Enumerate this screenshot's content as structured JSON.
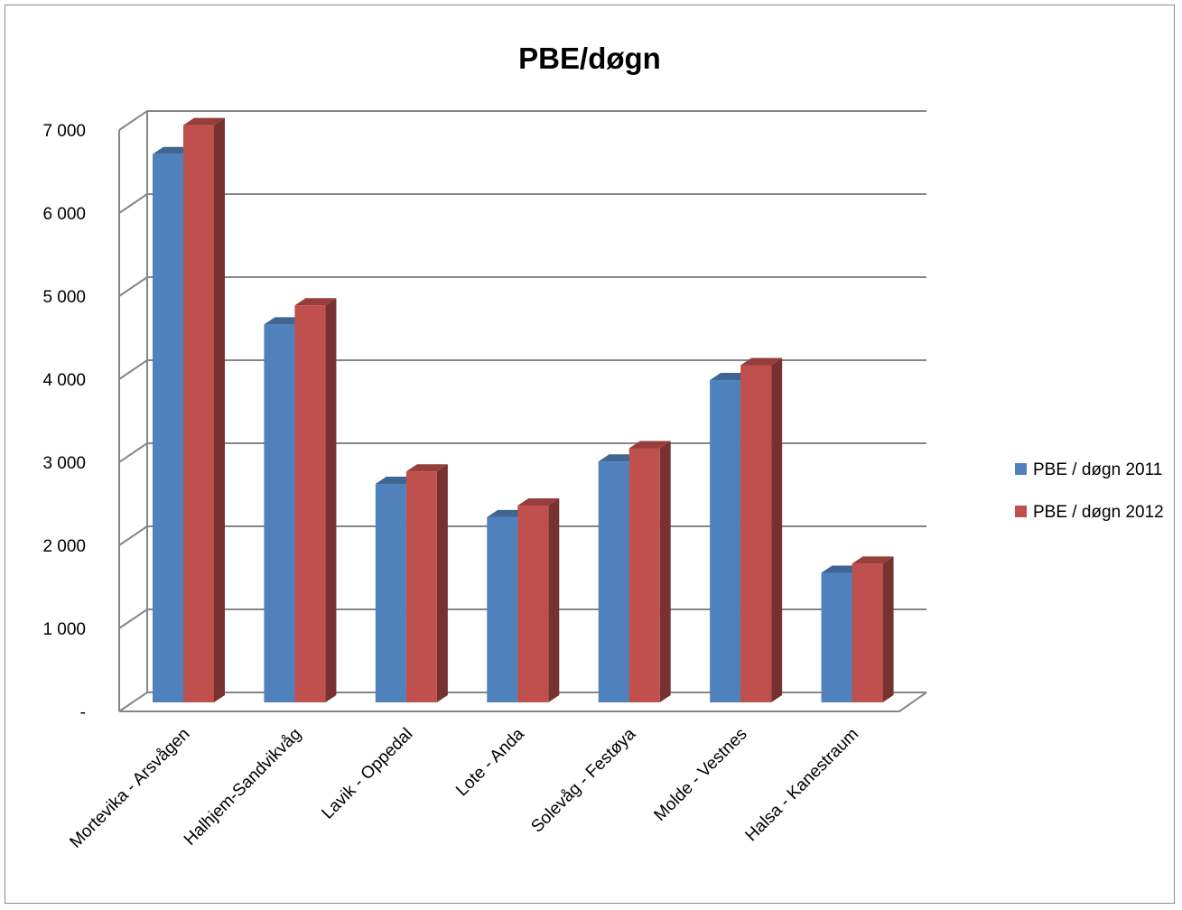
{
  "chart_data": {
    "type": "bar",
    "title": "PBE/døgn",
    "xlabel": "",
    "ylabel": "",
    "categories": [
      "Mortevika - Arsvågen",
      "Halhjem-Sandvikvåg",
      "Lavik  - Oppedal",
      "Lote - Anda",
      "Solevåg - Festøya",
      "Molde - Vestnes",
      "Halsa - Kanestraum"
    ],
    "series": [
      {
        "name": "PBE / døgn 2011",
        "color": "#4f81bd",
        "values": [
          6600,
          4550,
          2630,
          2230,
          2900,
          3880,
          1560
        ]
      },
      {
        "name": "PBE / døgn 2012",
        "color": "#c0504d",
        "values": [
          6950,
          4780,
          2780,
          2370,
          3060,
          4060,
          1670
        ]
      }
    ],
    "ylim": [
      0,
      7000
    ],
    "yticks": [
      0,
      1000,
      2000,
      3000,
      4000,
      5000,
      6000,
      7000
    ],
    "ytick_labels": [
      "-",
      "1 000",
      "2 000",
      "3 000",
      "4 000",
      "5 000",
      "6 000",
      "7 000"
    ],
    "grid": true,
    "legend_position": "right",
    "style": "3d-clustered-column"
  }
}
